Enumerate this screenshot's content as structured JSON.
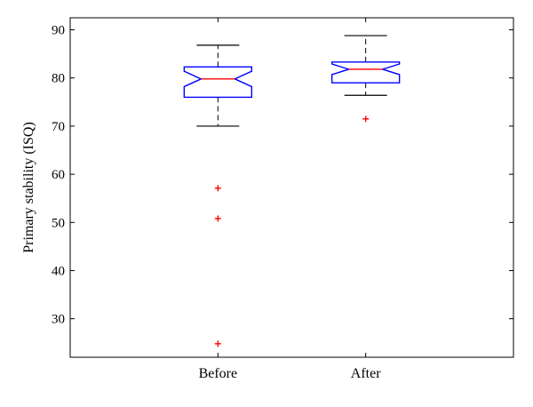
{
  "chart_data": {
    "type": "box",
    "categories": [
      "Before",
      "After"
    ],
    "ylabel": "Primary stability (ISQ)",
    "xlabel": "",
    "title": "",
    "ylim": [
      22,
      92.5
    ],
    "yticks": [
      30,
      40,
      50,
      60,
      70,
      80,
      90
    ],
    "grid": false,
    "boxes": [
      {
        "category": "Before",
        "whisker_low": 70,
        "q1": 76,
        "median": 79.8,
        "q3": 82.3,
        "whisker_high": 86.8,
        "notch_low": 78.2,
        "notch_high": 81.4,
        "outliers": [
          57.1,
          50.8,
          24.8
        ]
      },
      {
        "category": "After",
        "whisker_low": 76.4,
        "q1": 79,
        "median": 81.8,
        "q3": 83.3,
        "whisker_high": 88.8,
        "notch_low": 80.7,
        "notch_high": 82.9,
        "outliers": [
          71.5
        ]
      }
    ],
    "colors": {
      "box": "#0000ff",
      "median": "#ff0000",
      "outlier": "#ff0000",
      "whisker": "#000000",
      "axes": "#000000"
    }
  }
}
